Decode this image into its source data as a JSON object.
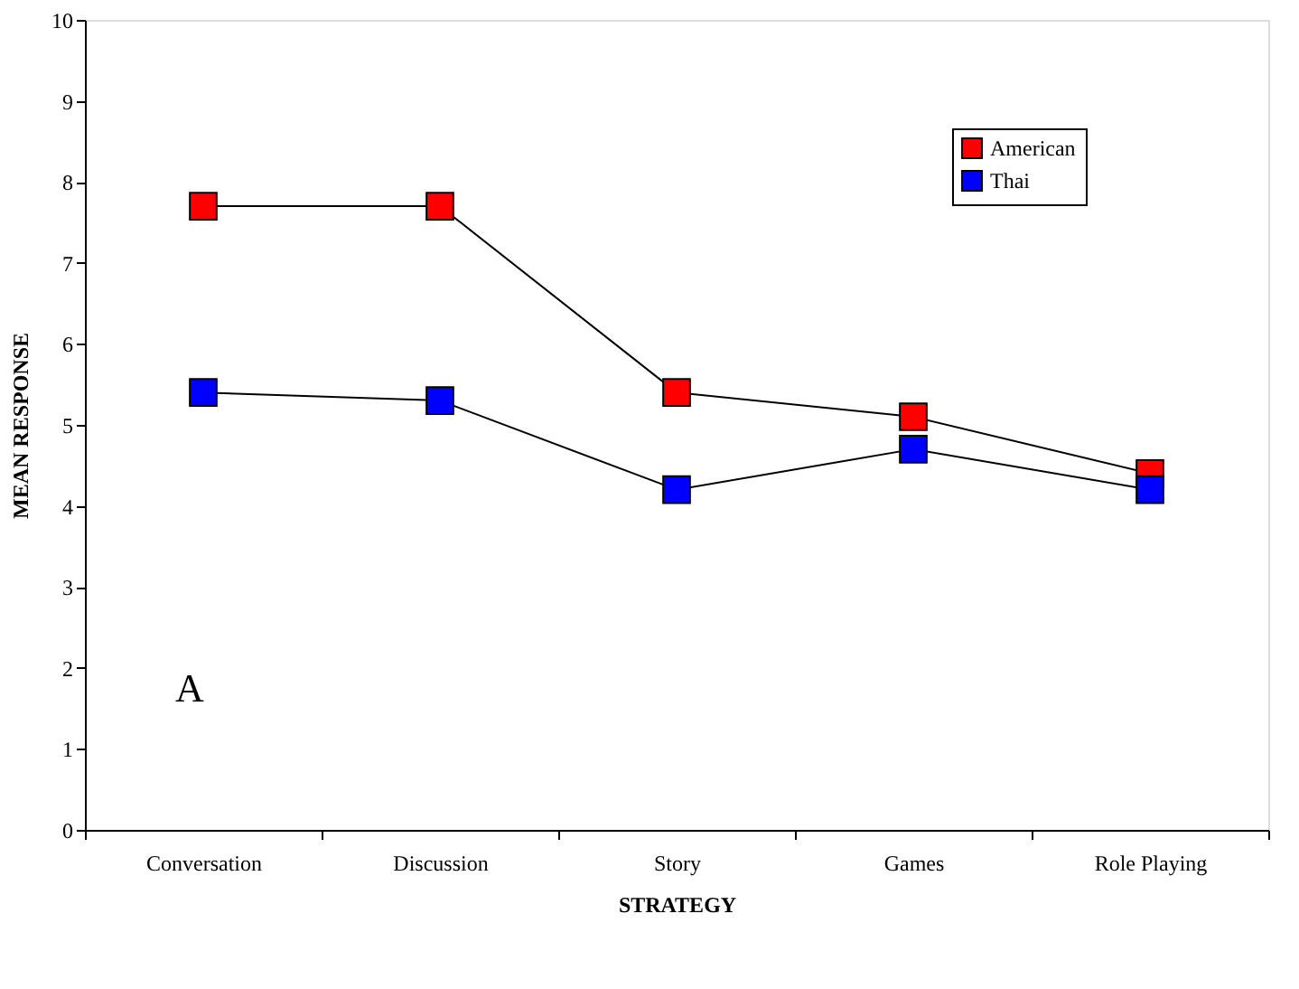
{
  "chart_data": {
    "type": "line",
    "xlabel": "STRATEGY",
    "ylabel": "MEAN RESPONSE",
    "categories": [
      "Conversation",
      "Discussion",
      "Story",
      "Games",
      "Role Playing"
    ],
    "series": [
      {
        "name": "American",
        "color": "#ff0000",
        "values": [
          7.7,
          7.7,
          5.4,
          5.1,
          4.4
        ]
      },
      {
        "name": "Thai",
        "color": "#0000ff",
        "values": [
          5.4,
          5.3,
          4.2,
          4.7,
          4.2
        ]
      }
    ],
    "ylim": [
      0,
      10
    ],
    "yticks": [
      0,
      1,
      2,
      3,
      4,
      5,
      6,
      7,
      8,
      9,
      10
    ],
    "grid": false,
    "legend": "top right",
    "marker": "square",
    "line_style": "solid",
    "annotations": [
      "A"
    ]
  }
}
